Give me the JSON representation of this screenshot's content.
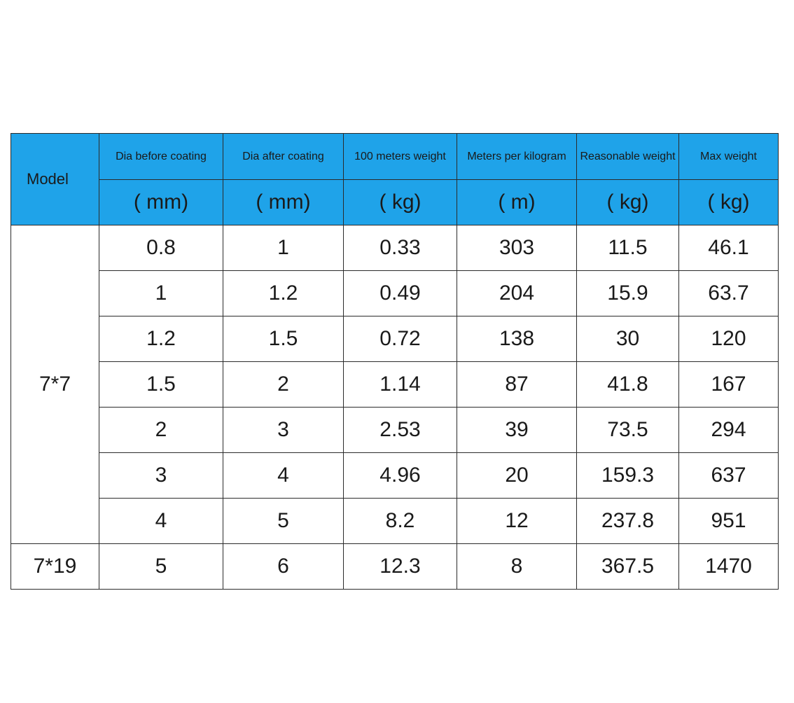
{
  "header": {
    "model": "Model",
    "columns": [
      {
        "name": "Dia before coating",
        "unit": "( mm)"
      },
      {
        "name": "Dia after coating",
        "unit": "( mm)"
      },
      {
        "name": "100 meters weight",
        "unit": "( kg)"
      },
      {
        "name": "Meters per kilogram",
        "unit": "( m)"
      },
      {
        "name": "Reasonable weight",
        "unit": "( kg)"
      },
      {
        "name": "Max weight",
        "unit": "( kg)"
      }
    ]
  },
  "table": {
    "groups": [
      {
        "model": "7*7",
        "rows": [
          [
            "0.8",
            "1",
            "0.33",
            "303",
            "11.5",
            "46.1"
          ],
          [
            "1",
            "1.2",
            "0.49",
            "204",
            "15.9",
            "63.7"
          ],
          [
            "1.2",
            "1.5",
            "0.72",
            "138",
            "30",
            "120"
          ],
          [
            "1.5",
            "2",
            "1.14",
            "87",
            "41.8",
            "167"
          ],
          [
            "2",
            "3",
            "2.53",
            "39",
            "73.5",
            "294"
          ],
          [
            "3",
            "4",
            "4.96",
            "20",
            "159.3",
            "637"
          ],
          [
            "4",
            "5",
            "8.2",
            "12",
            "237.8",
            "951"
          ]
        ]
      },
      {
        "model": "7*19",
        "rows": [
          [
            "5",
            "6",
            "12.3",
            "8",
            "367.5",
            "1470"
          ]
        ]
      }
    ]
  }
}
